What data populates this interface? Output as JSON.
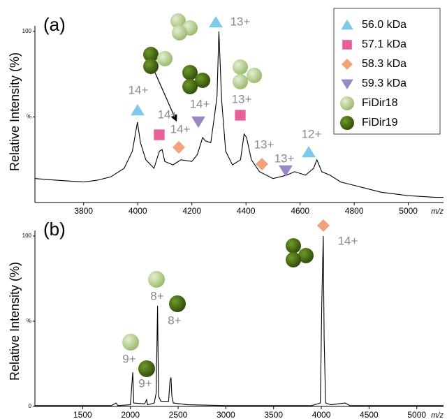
{
  "chart_data": [
    {
      "type": "line",
      "panel_label": "(a)",
      "y_label": "Relative Intensity (%)",
      "x_label": "m/z",
      "color": "#000000",
      "x": [
        3620,
        3700,
        3800,
        3850,
        3900,
        3950,
        3980,
        3999,
        4010,
        4030,
        4060,
        4080,
        4090,
        4100,
        4130,
        4160,
        4200,
        4220,
        4240,
        4250,
        4270,
        4283,
        4293,
        4300,
        4310,
        4325,
        4350,
        4380,
        4393,
        4402,
        4420,
        4450,
        4500,
        4550,
        4580,
        4620,
        4650,
        4662,
        4680,
        4710,
        4750,
        4800,
        4900,
        5000,
        5100,
        5130
      ],
      "values": [
        14,
        13,
        12,
        13,
        15,
        20,
        30,
        47,
        35,
        25,
        20,
        30,
        31,
        24,
        22,
        25,
        24,
        28,
        38,
        36,
        35,
        50,
        62,
        100,
        60,
        30,
        22,
        25,
        40,
        38,
        25,
        18,
        14,
        16,
        18,
        16,
        20,
        25,
        18,
        16,
        12,
        10,
        6,
        4,
        3,
        3
      ],
      "xlim": [
        3620,
        5130
      ],
      "xticks": [
        3800,
        4000,
        4200,
        4400,
        4600,
        4800,
        5000
      ],
      "ylim": [
        0,
        100
      ],
      "yticks": [
        100,
        {
          "value": 50,
          "label": "%"
        }
      ],
      "annotations": [
        "14+",
        "14+",
        "14+",
        "14+",
        "13+",
        "13+",
        "13+",
        "13+",
        "12+"
      ],
      "legend": [
        {
          "name": "56.0 kDa",
          "color": "#7ec8ea",
          "marker": "triangle-up"
        },
        {
          "name": "57.1 kDa",
          "color": "#e8609a",
          "marker": "square"
        },
        {
          "name": "58.3 kDa",
          "color": "#f2a27a",
          "marker": "diamond"
        },
        {
          "name": "59.3 kDa",
          "color": "#9a88c4",
          "marker": "triangle-down"
        },
        {
          "name": "FiDir18",
          "color": "#b4cf8a",
          "marker": "sphere"
        },
        {
          "name": "FiDir19",
          "color": "#4a6e12",
          "marker": "sphere"
        }
      ]
    },
    {
      "type": "line",
      "panel_label": "(b)",
      "y_label": "Relative Intensity (%)",
      "x_label": "m/z",
      "color": "#000000",
      "x": [
        1000,
        1800,
        1850,
        1870,
        2000,
        2025,
        2035,
        2150,
        2170,
        2180,
        2250,
        2270,
        2285,
        2295,
        2320,
        2400,
        2415,
        2425,
        2435,
        2450,
        2600,
        3000,
        3900,
        3990,
        4005,
        4020,
        4030,
        4045,
        4100,
        4250,
        4300,
        5280
      ],
      "values": [
        0.5,
        0.5,
        2,
        0.5,
        1,
        20,
        2,
        1.5,
        4,
        1,
        2,
        8,
        59,
        6,
        3,
        3,
        15,
        17,
        6,
        2,
        1,
        0.5,
        0.5,
        2,
        60,
        100,
        40,
        2,
        1,
        2,
        0.5,
        0.5
      ],
      "xlim": [
        1000,
        5280
      ],
      "xticks": [
        1500,
        2000,
        2500,
        3000,
        3500,
        4000,
        4500,
        5000
      ],
      "ylim": [
        0,
        100
      ],
      "yticks": [
        100,
        {
          "value": 50,
          "label": "%"
        },
        0
      ],
      "annotations": [
        "14+",
        "8+",
        "8+",
        "9+",
        "9+"
      ]
    }
  ]
}
